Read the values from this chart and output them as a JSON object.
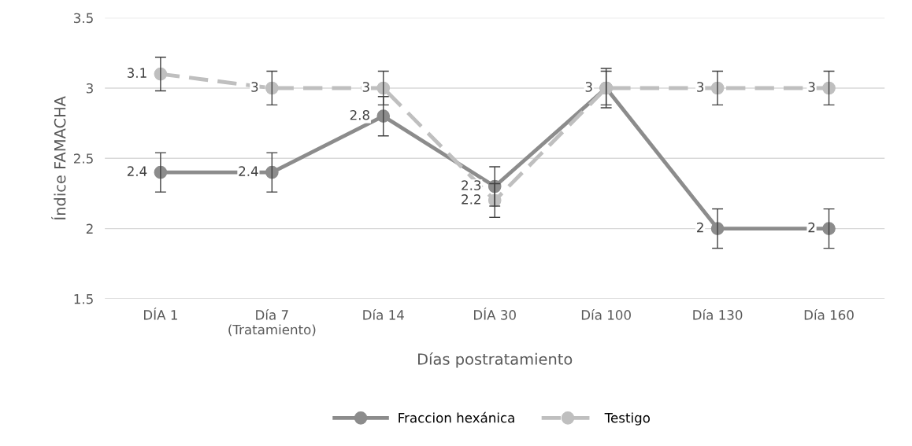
{
  "chart_data": {
    "type": "line",
    "xlabel": "Días postratamiento",
    "ylabel": "Índice FAMACHA",
    "categories": [
      "DÍA 1",
      "Día 7\n(Tratamiento)",
      "Día 14",
      "DÍA 30",
      "Día 100",
      "Día 130",
      "Día 160"
    ],
    "series": [
      {
        "name": "Fraccion hexánica",
        "color": "#8c8c8c",
        "line_style": "solid",
        "values": [
          2.4,
          2.4,
          2.8,
          2.3,
          3,
          2,
          2
        ],
        "errors": [
          0.14,
          0.14,
          0.14,
          0.14,
          0.14,
          0.14,
          0.14
        ]
      },
      {
        "name": "Testigo",
        "color": "#bfbfbf",
        "line_style": "dashed",
        "values": [
          3.1,
          3,
          3,
          2.2,
          3,
          3,
          3
        ],
        "value_labels": [
          "3.1",
          "3",
          "3",
          "2.2",
          null,
          "3",
          "3"
        ],
        "errors": [
          0.12,
          0.12,
          0.12,
          0.12,
          0.12,
          0.12,
          0.12
        ]
      }
    ],
    "ylim": [
      1.5,
      3.5
    ],
    "yticks": [
      1.5,
      2,
      2.5,
      3,
      3.5
    ],
    "grid": "y",
    "legend": "bottom",
    "marker": "circle",
    "data_labels": true
  }
}
